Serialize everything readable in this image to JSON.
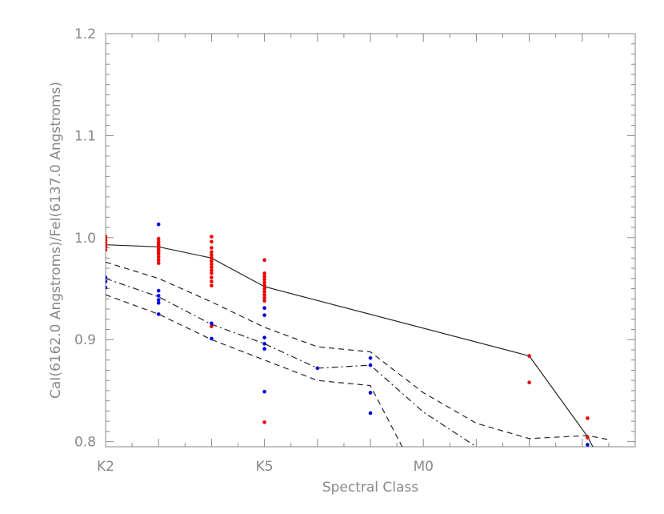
{
  "chart_data": {
    "type": "scatter",
    "xlabel": "Spectral Class",
    "ylabel": "CaI(6162.0 Angstroms)/FeI(6137.0 Angstroms)",
    "x_tick_labels": [
      "K2",
      "K5",
      "M0"
    ],
    "y_tick_labels": [
      "0.8",
      "0.9",
      "1.0",
      "1.1",
      "1.2"
    ],
    "x_tick_positions": [
      0,
      3,
      6
    ],
    "y_ticks": [
      0.8,
      0.9,
      1.0,
      1.1,
      1.2
    ],
    "xlim": [
      0,
      10
    ],
    "ylim": [
      0.795,
      1.2
    ],
    "colors": {
      "red": "#ee0000",
      "blue": "#0000dd",
      "line": "#222222",
      "axis": "#888888"
    },
    "series": [
      {
        "marker": "dot",
        "color": "red",
        "points": [
          [
            0,
            0.988
          ],
          [
            0,
            0.991
          ],
          [
            0,
            0.993
          ],
          [
            0,
            0.995
          ],
          [
            0,
            0.997
          ],
          [
            0,
            0.999
          ],
          [
            0,
            1.001
          ],
          [
            1,
            0.975
          ],
          [
            1,
            0.978
          ],
          [
            1,
            0.981
          ],
          [
            1,
            0.984
          ],
          [
            1,
            0.986
          ],
          [
            1,
            0.988
          ],
          [
            1,
            0.99
          ],
          [
            1,
            0.992
          ],
          [
            1,
            0.994
          ],
          [
            1,
            0.996
          ],
          [
            1,
            0.999
          ],
          [
            2,
            0.953
          ],
          [
            2,
            0.957
          ],
          [
            2,
            0.961
          ],
          [
            2,
            0.965
          ],
          [
            2,
            0.968
          ],
          [
            2,
            0.971
          ],
          [
            2,
            0.974
          ],
          [
            2,
            0.977
          ],
          [
            2,
            0.98
          ],
          [
            2,
            0.983
          ],
          [
            2,
            0.986
          ],
          [
            2,
            0.99
          ],
          [
            2,
            0.996
          ],
          [
            2,
            1.001
          ],
          [
            2,
            0.913
          ],
          [
            3,
            0.938
          ],
          [
            3,
            0.941
          ],
          [
            3,
            0.944
          ],
          [
            3,
            0.947
          ],
          [
            3,
            0.95
          ],
          [
            3,
            0.953
          ],
          [
            3,
            0.956
          ],
          [
            3,
            0.959
          ],
          [
            3,
            0.962
          ],
          [
            3,
            0.965
          ],
          [
            3,
            0.978
          ],
          [
            3,
            0.819
          ],
          [
            8,
            0.884
          ],
          [
            8,
            0.858
          ],
          [
            9.1,
            0.823
          ],
          [
            9.1,
            0.804
          ]
        ]
      },
      {
        "marker": "dot",
        "color": "blue",
        "points": [
          [
            0,
            0.951
          ],
          [
            0,
            0.957
          ],
          [
            0,
            0.961
          ],
          [
            1,
            1.013
          ],
          [
            1,
            0.948
          ],
          [
            1,
            0.943
          ],
          [
            1,
            0.939
          ],
          [
            1,
            0.936
          ],
          [
            1,
            0.925
          ],
          [
            2,
            0.916
          ],
          [
            2,
            0.901
          ],
          [
            3,
            0.931
          ],
          [
            3,
            0.924
          ],
          [
            3,
            0.902
          ],
          [
            3,
            0.896
          ],
          [
            3,
            0.891
          ],
          [
            3,
            0.849
          ],
          [
            4,
            0.872
          ],
          [
            5,
            0.882
          ],
          [
            5,
            0.875
          ],
          [
            5,
            0.848
          ],
          [
            5,
            0.828
          ],
          [
            9.1,
            0.797
          ]
        ]
      },
      {
        "marker": "line",
        "style": "solid",
        "color": "line",
        "points": [
          [
            0,
            0.993
          ],
          [
            1,
            0.991
          ],
          [
            2,
            0.98
          ],
          [
            3,
            0.952
          ],
          [
            8,
            0.884
          ],
          [
            9.1,
            0.805
          ],
          [
            9.2,
            0.795
          ]
        ]
      },
      {
        "marker": "line",
        "style": "dashed",
        "color": "line",
        "points": [
          [
            0,
            0.976
          ],
          [
            1,
            0.96
          ],
          [
            2,
            0.937
          ],
          [
            3,
            0.912
          ],
          [
            4,
            0.893
          ],
          [
            5,
            0.888
          ],
          [
            6,
            0.848
          ],
          [
            7,
            0.818
          ],
          [
            8,
            0.803
          ],
          [
            9.1,
            0.806
          ],
          [
            9.5,
            0.802
          ]
        ]
      },
      {
        "marker": "line",
        "style": "dashdot",
        "color": "line",
        "points": [
          [
            0,
            0.96
          ],
          [
            1,
            0.942
          ],
          [
            2,
            0.915
          ],
          [
            3,
            0.896
          ],
          [
            4,
            0.872
          ],
          [
            5,
            0.875
          ],
          [
            6,
            0.829
          ],
          [
            7,
            0.795
          ]
        ]
      },
      {
        "marker": "line",
        "style": "dashed",
        "color": "line",
        "points": [
          [
            0,
            0.944
          ],
          [
            1,
            0.925
          ],
          [
            2,
            0.9
          ],
          [
            3,
            0.88
          ],
          [
            4,
            0.86
          ],
          [
            5,
            0.855
          ],
          [
            5.6,
            0.795
          ]
        ]
      }
    ]
  }
}
